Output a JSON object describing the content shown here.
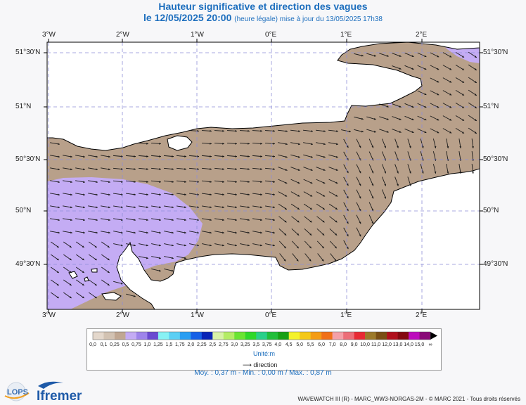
{
  "header": {
    "title": "Hauteur significative et direction des vagues",
    "date": "le 12/05/2025 20:00",
    "note": "(heure légale) mise à jour du 13/05/2025 17h38"
  },
  "map": {
    "lon_labels": [
      "3°W",
      "2°W",
      "1°W",
      "0°E",
      "1°E",
      "2°E"
    ],
    "lat_labels": [
      "51°30'N",
      "51°N",
      "50°30'N",
      "50°N",
      "49°30'N"
    ],
    "land_color": "#ffffff",
    "sea_color": "#b8a08a",
    "calm_sea_color": "#c4acf4",
    "vector_color": "#1a1a1a"
  },
  "legend": {
    "labels": [
      "0,0",
      "0,1",
      "0,25",
      "0,5",
      "0,75",
      "1,0",
      "1,25",
      "1,5",
      "1,75",
      "2,0",
      "2,25",
      "2,5",
      "2,75",
      "3,0",
      "3,25",
      "3,5",
      "3,75",
      "4,0",
      "4,5",
      "5,0",
      "5,5",
      "6,0",
      "7,0",
      "8,0",
      "9,0",
      "10,0",
      "11,0",
      "12,0",
      "13,0",
      "14,0",
      "15,0",
      "∞"
    ],
    "colors": [
      "#e4d8cc",
      "#d2c2b2",
      "#c0a792",
      "#c4acf4",
      "#9e84ea",
      "#6a4ad0",
      "#88f2f4",
      "#5ccff4",
      "#2a9ef2",
      "#1660e6",
      "#0a24b6",
      "#d8f2a8",
      "#b4ec66",
      "#6ae432",
      "#2ed82a",
      "#2ad08a",
      "#22be3a",
      "#18a014",
      "#f4f22c",
      "#f4c818",
      "#f49c14",
      "#f07018",
      "#f4a0a8",
      "#ec6e78",
      "#e82a34",
      "#9c7a2a",
      "#7a4e14",
      "#b0101c",
      "#840810",
      "#bc0cbc",
      "#8a0a78"
    ],
    "unit": "Unité:m",
    "direction_label": "direction"
  },
  "stats": "Moy. : 0,37 m  -  Min. : 0,00 m / Max. : 0,87 m",
  "credits": "WAVEWATCH III (R) - MARC_WW3-NORGAS-2M - © MARC 2021 - Tous droits réservés",
  "logos": {
    "left": "LOPS",
    "right": "Ifremer"
  }
}
